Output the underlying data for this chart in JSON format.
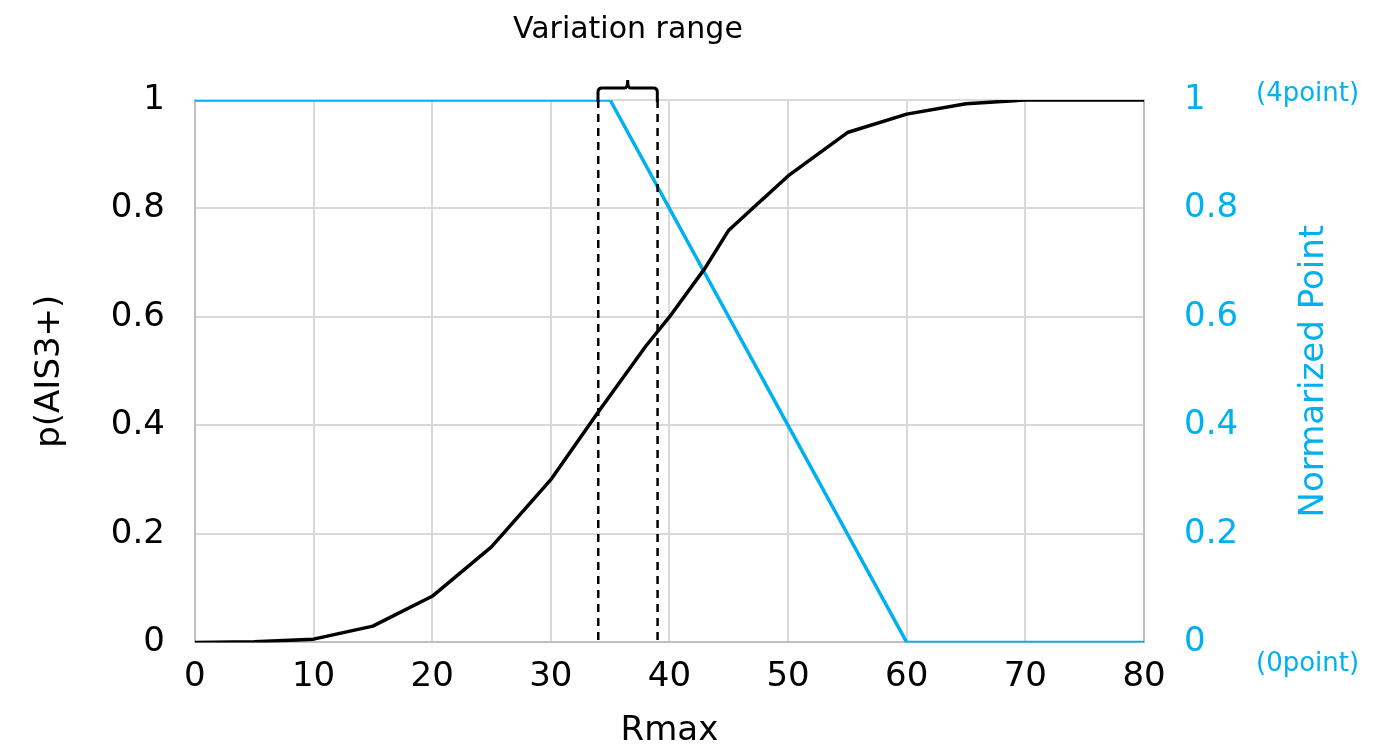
{
  "chart_data": {
    "type": "line",
    "xlabel": "Rmax",
    "ylabel": "p(AIS3+)",
    "y2label": "Normarized Point",
    "xlim": [
      0,
      80
    ],
    "xticks": [
      0,
      10,
      20,
      30,
      40,
      50,
      60,
      70,
      80
    ],
    "ylim": [
      0,
      1
    ],
    "yticks": [
      0,
      0.2,
      0.4,
      0.6,
      0.8,
      1
    ],
    "y2lim": [
      0,
      1
    ],
    "y2ticks": [
      0,
      0.2,
      0.4,
      0.6,
      0.8,
      1
    ],
    "grid": true,
    "legend": false,
    "marker": "none",
    "line_style": "solid",
    "series": [
      {
        "color": "#000000",
        "x": [
          0,
          5,
          10,
          15,
          20,
          25,
          30,
          34,
          38,
          40,
          43,
          45,
          50,
          55,
          60,
          65,
          70,
          80
        ],
        "values": [
          0,
          0.001,
          0.006,
          0.03,
          0.085,
          0.176,
          0.3,
          0.425,
          0.546,
          0.6,
          0.69,
          0.76,
          0.86,
          0.94,
          0.974,
          0.993,
          1,
          1
        ]
      },
      {
        "color": "#00b0f0",
        "axis": "y2",
        "x": [
          0,
          35,
          60,
          80
        ],
        "values": [
          1,
          1,
          0,
          0
        ]
      }
    ],
    "ref_lines": [
      {
        "axis": "x",
        "value": 34,
        "color": "#000000",
        "line_style": "dashed"
      },
      {
        "axis": "x",
        "value": 39,
        "color": "#000000",
        "line_style": "dashed"
      }
    ],
    "annotations": [
      "Variation range",
      "(4point)",
      "(0point)"
    ]
  }
}
